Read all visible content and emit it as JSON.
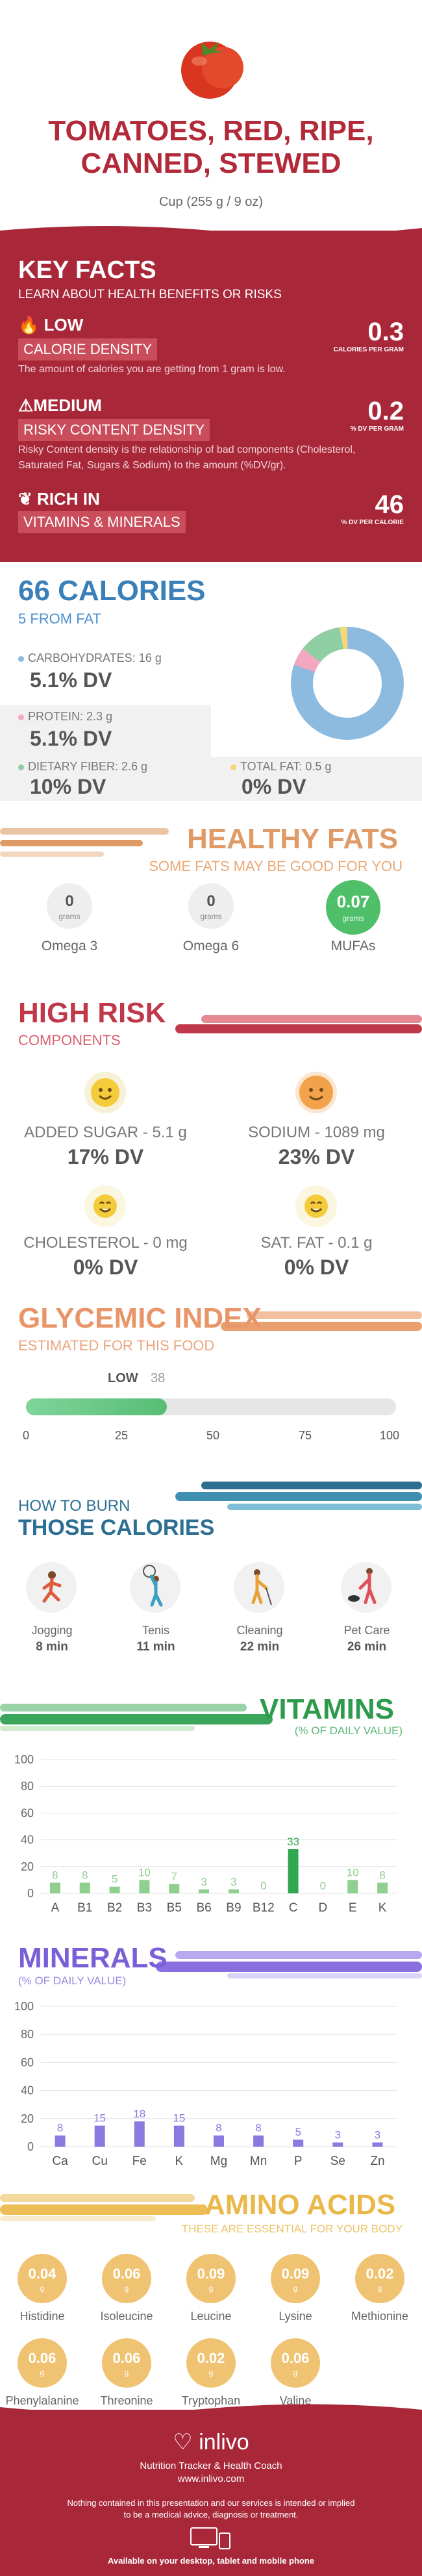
{
  "header": {
    "title_line1": "TOMATOES, RED, RIPE,",
    "title_line2": "CANNED, STEWED",
    "serving": "Cup (255 g / 9 oz)"
  },
  "key_facts": {
    "title": "KEY FACTS",
    "subtitle": "LEARN ABOUT HEALTH BENEFITS OR RISKS",
    "calorie_density": {
      "level": "LOW",
      "label": "CALORIE DENSITY",
      "value": "0.3",
      "unit": "CALORIES PER GRAM",
      "desc": "The amount of calories you are getting from 1 gram is low."
    },
    "risky_content": {
      "level": "MEDIUM",
      "label": "RISKY CONTENT DENSITY",
      "value": "0.2",
      "unit": "% DV PER GRAM",
      "desc": "Risky Content density is the relationship of bad components (Cholesterol, Saturated Fat, Sugars & Sodium) to the amount (%DV/gr)."
    },
    "rich_in": {
      "level": "RICH IN",
      "label": "VITAMINS & MINERALS",
      "value": "46",
      "unit": "% DV PER CALORIE"
    }
  },
  "calories": {
    "title": "66 CALORIES",
    "subtitle": "5 FROM FAT",
    "carbs": {
      "label": "CARBOHYDRATES: 16 g",
      "dv": "5.1% DV",
      "color": "#8dbbe0"
    },
    "protein": {
      "label": "PROTEIN: 2.3 g",
      "dv": "5.1% DV",
      "color": "#f2a8be"
    },
    "fiber": {
      "label": "DIETARY FIBER: 2.6 g",
      "dv": "10% DV",
      "color": "#8fcfa4"
    },
    "fat": {
      "label": "TOTAL FAT: 0.5 g",
      "dv": "0% DV",
      "color": "#f5d77a"
    }
  },
  "healthy_fats": {
    "title": "HEALTHY FATS",
    "subtitle": "SOME FATS MAY BE GOOD FOR YOU",
    "items": [
      {
        "value": "0",
        "unit": "grams",
        "label": "Omega 3"
      },
      {
        "value": "0",
        "unit": "grams",
        "label": "Omega 6"
      },
      {
        "value": "0.07",
        "unit": "grams",
        "label": "MUFAs"
      }
    ]
  },
  "high_risk": {
    "title": "HIGH RISK",
    "subtitle": "COMPONENTS",
    "items": [
      {
        "label": "ADDED SUGAR - 5.1 g",
        "dv": "17% DV"
      },
      {
        "label": "SODIUM - 1089 mg",
        "dv": "23% DV"
      },
      {
        "label": "CHOLESTEROL - 0 mg",
        "dv": "0% DV"
      },
      {
        "label": "SAT. FAT - 0.1 g",
        "dv": "0% DV"
      }
    ]
  },
  "glycemic": {
    "title": "GLYCEMIC INDEX",
    "subtitle": "ESTIMATED FOR THIS FOOD",
    "level": "LOW",
    "value": "38",
    "value_num": 38,
    "ticks": [
      "0",
      "25",
      "50",
      "75",
      "100"
    ]
  },
  "burn": {
    "title1": "HOW TO BURN",
    "title2": "THOSE CALORIES",
    "items": [
      {
        "label": "Jogging",
        "time": "8 min"
      },
      {
        "label": "Tenis",
        "time": "11 min"
      },
      {
        "label": "Cleaning",
        "time": "22 min"
      },
      {
        "label": "Pet Care",
        "time": "26 min"
      }
    ]
  },
  "vitamins": {
    "title": "VITAMINS",
    "subtitle": "(% OF DAILY VALUE)"
  },
  "minerals": {
    "title": "MINERALS",
    "subtitle": "(% OF DAILY VALUE)"
  },
  "chart_data": [
    {
      "type": "bar",
      "title": "VITAMINS",
      "categories": [
        "A",
        "B1",
        "B2",
        "B3",
        "B5",
        "B6",
        "B9",
        "B12",
        "C",
        "D",
        "E",
        "K"
      ],
      "values": [
        8,
        8,
        5,
        10,
        7,
        3,
        3,
        0,
        33,
        0,
        10,
        8
      ],
      "ylim": [
        0,
        100
      ],
      "yticks": [
        "0",
        "20",
        "40",
        "60",
        "80",
        "100"
      ],
      "grid": true,
      "colors": [
        "#8fcf8f",
        "#2fa84f"
      ]
    },
    {
      "type": "bar",
      "title": "MINERALS",
      "categories": [
        "Ca",
        "Cu",
        "Fe",
        "K",
        "Mg",
        "Mn",
        "P",
        "Se",
        "Zn"
      ],
      "values": [
        8,
        15,
        18,
        15,
        8,
        8,
        5,
        3,
        3
      ],
      "ylim": [
        0,
        100
      ],
      "yticks": [
        "0",
        "20",
        "40",
        "60",
        "80",
        "100"
      ],
      "grid": true,
      "colors": [
        "#8a7ae0"
      ]
    }
  ],
  "amino": {
    "title": "AMINO ACIDS",
    "subtitle": "THESE ARE ESSENTIAL FOR YOUR BODY",
    "unit": "g",
    "items": [
      {
        "value": "0.04",
        "label": "Histidine"
      },
      {
        "value": "0.06",
        "label": "Isoleucine"
      },
      {
        "value": "0.09",
        "label": "Leucine"
      },
      {
        "value": "0.09",
        "label": "Lysine"
      },
      {
        "value": "0.02",
        "label": "Methionine"
      },
      {
        "value": "0.06",
        "label": "Phenylalanine"
      },
      {
        "value": "0.06",
        "label": "Threonine"
      },
      {
        "value": "0.02",
        "label": "Tryptophan"
      },
      {
        "value": "0.06",
        "label": "Valine"
      }
    ]
  },
  "footer": {
    "brand": "inlivo",
    "tagline": "Nutrition Tracker & Health Coach",
    "url": "www.inlivo.com",
    "disclaimer1": "Nothing contained in this presentation and our services is intended or implied",
    "disclaimer2": "to be a medical advice, diagnosis or treatment.",
    "available": "Available on your desktop, tablet and mobile phone"
  }
}
